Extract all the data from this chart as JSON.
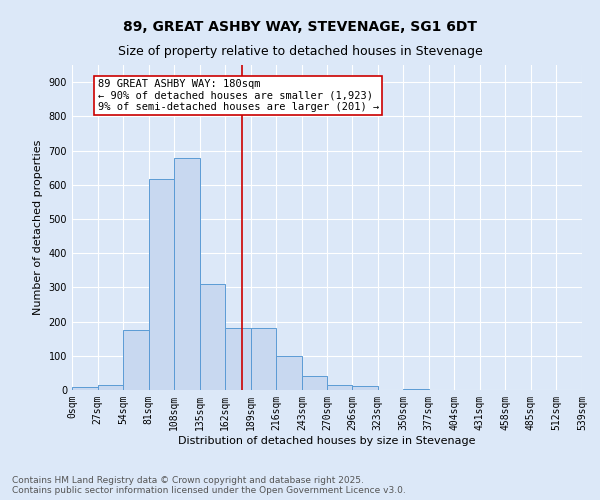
{
  "title": "89, GREAT ASHBY WAY, STEVENAGE, SG1 6DT",
  "subtitle": "Size of property relative to detached houses in Stevenage",
  "xlabel": "Distribution of detached houses by size in Stevenage",
  "ylabel": "Number of detached properties",
  "bin_labels": [
    "0sqm",
    "27sqm",
    "54sqm",
    "81sqm",
    "108sqm",
    "135sqm",
    "162sqm",
    "189sqm",
    "216sqm",
    "243sqm",
    "270sqm",
    "296sqm",
    "323sqm",
    "350sqm",
    "377sqm",
    "404sqm",
    "431sqm",
    "458sqm",
    "485sqm",
    "512sqm",
    "539sqm"
  ],
  "bar_values": [
    8,
    15,
    175,
    618,
    678,
    310,
    180,
    180,
    100,
    42,
    15,
    12,
    0,
    4,
    0,
    0,
    0,
    0,
    0,
    0
  ],
  "bin_edges": [
    0,
    27,
    54,
    81,
    108,
    135,
    162,
    189,
    216,
    243,
    270,
    296,
    323,
    350,
    377,
    404,
    431,
    458,
    485,
    512,
    539
  ],
  "bar_color": "#c8d8f0",
  "bar_edge_color": "#5b9bd5",
  "vline_x": 180,
  "vline_color": "#cc0000",
  "annotation_line1": "89 GREAT ASHBY WAY: 180sqm",
  "annotation_line2": "← 90% of detached houses are smaller (1,923)",
  "annotation_line3": "9% of semi-detached houses are larger (201) →",
  "annotation_box_color": "#ffffff",
  "annotation_box_edge": "#cc0000",
  "ylim": [
    0,
    950
  ],
  "yticks": [
    0,
    100,
    200,
    300,
    400,
    500,
    600,
    700,
    800,
    900
  ],
  "bg_color": "#dce8f8",
  "grid_color": "#ffffff",
  "footer_text": "Contains HM Land Registry data © Crown copyright and database right 2025.\nContains public sector information licensed under the Open Government Licence v3.0.",
  "title_fontsize": 10,
  "subtitle_fontsize": 9,
  "axis_label_fontsize": 8,
  "tick_fontsize": 7,
  "annotation_fontsize": 7.5,
  "footer_fontsize": 6.5
}
